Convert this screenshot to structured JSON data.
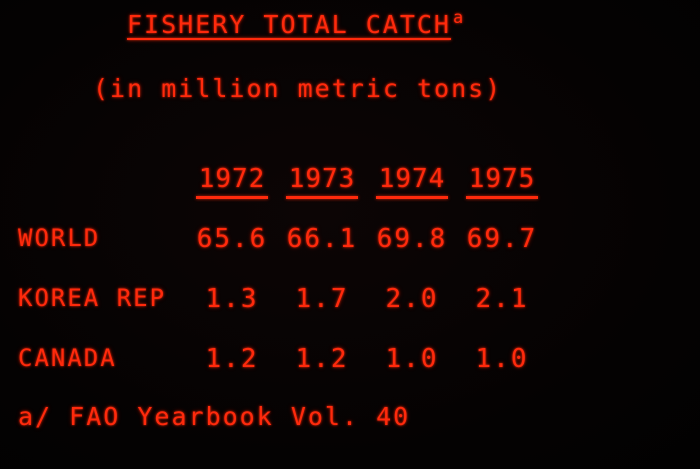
{
  "title": "FISHERY TOTAL CATCH",
  "title_footnote_marker": "a",
  "subtitle": "(in million metric tons)",
  "table": {
    "years": [
      "1972",
      "1973",
      "1974",
      "1975"
    ],
    "rows": [
      {
        "label": "WORLD",
        "values": [
          "65.6",
          "66.1",
          "69.8",
          "69.7"
        ]
      },
      {
        "label": "KOREA REP",
        "values": [
          "1.3",
          "1.7",
          "2.0",
          "2.1"
        ]
      },
      {
        "label": "CANADA",
        "values": [
          "1.2",
          "1.2",
          "1.0",
          "1.0"
        ]
      }
    ]
  },
  "footnote": "a/ FAO Yearbook Vol. 40",
  "colors": {
    "text": "#ff2a0c",
    "background": "#050303"
  }
}
